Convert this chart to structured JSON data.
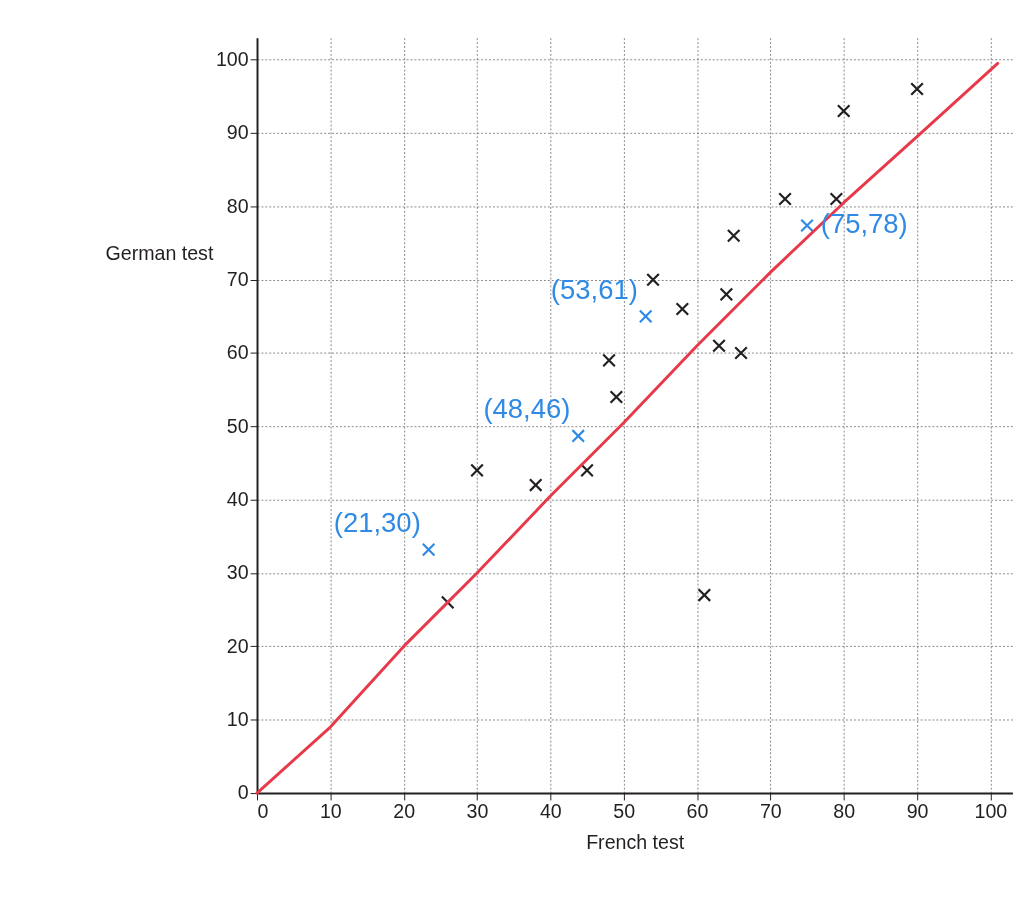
{
  "chart_data": {
    "type": "scatter",
    "xlabel": "French test",
    "ylabel": "German test",
    "xlim": [
      0,
      103
    ],
    "ylim": [
      0,
      103
    ],
    "xticks": [
      0,
      10,
      20,
      30,
      40,
      50,
      60,
      70,
      80,
      90,
      100
    ],
    "yticks": [
      0,
      10,
      20,
      30,
      40,
      50,
      60,
      70,
      80,
      90,
      100
    ],
    "grid": true,
    "marker": "cross",
    "series": [
      {
        "color": "#231f20",
        "x": [
          26,
          30,
          38,
          45,
          48,
          49,
          54,
          58,
          61,
          63,
          64,
          65,
          66,
          72,
          79,
          80,
          90
        ],
        "values": [
          26,
          44,
          42,
          44,
          59,
          54,
          70,
          66,
          27,
          61,
          68,
          76,
          60,
          81,
          81,
          93,
          96
        ]
      },
      {
        "color": "#2f8ae6",
        "x": [
          23.4,
          43.8,
          53,
          75
        ],
        "values": [
          33.2,
          48.7,
          65,
          77.4
        ]
      },
      {
        "type": "line",
        "color": "#e8394a",
        "line_style": "solid",
        "marker": "none",
        "x": [
          0,
          10,
          20,
          30,
          40,
          50,
          60,
          70,
          80,
          90,
          101
        ],
        "values": [
          0,
          9,
          20,
          30,
          40.5,
          50.5,
          61,
          71,
          80.5,
          89.5,
          99.5
        ]
      }
    ],
    "annotations": [
      {
        "text": "(21,30)",
        "x": 23.4,
        "y": 33.2
      },
      {
        "text": "(48,46)",
        "x": 43.8,
        "y": 48.7
      },
      {
        "text": "(53,61)",
        "x": 53,
        "y": 65
      },
      {
        "text": "(75,78)",
        "x": 75,
        "y": 77.4
      }
    ]
  }
}
